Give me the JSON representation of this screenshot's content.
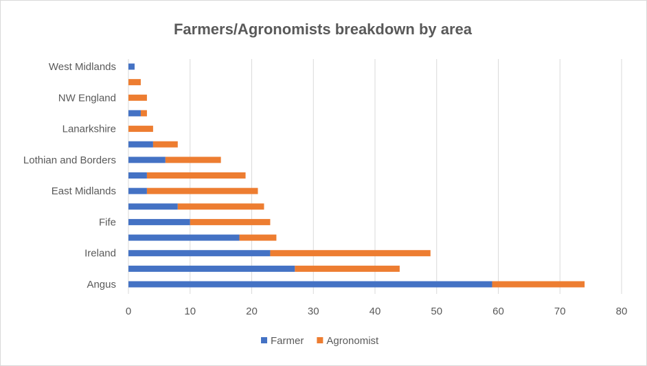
{
  "chart_data": {
    "type": "bar",
    "orientation": "horizontal",
    "stacked": true,
    "title": "Farmers/Agronomists breakdown by area",
    "xlabel": "",
    "ylabel": "",
    "categories": [
      "Angus",
      "",
      "Ireland",
      "",
      "Fife",
      "",
      "East Midlands",
      "",
      "Lothian and Borders",
      "",
      "Lanarkshire",
      "",
      "NW England",
      "",
      "West Midlands"
    ],
    "series": [
      {
        "name": "Farmer",
        "color": "#4472c4",
        "values": [
          59,
          27,
          23,
          18,
          10,
          8,
          3,
          3,
          6,
          4,
          0,
          2,
          0,
          0,
          1
        ]
      },
      {
        "name": "Agronomist",
        "color": "#ed7d31",
        "values": [
          15,
          17,
          26,
          6,
          13,
          14,
          18,
          16,
          9,
          4,
          4,
          1,
          3,
          2,
          0
        ]
      }
    ],
    "xlim": [
      0,
      80
    ],
    "xticks": [
      "0",
      "10",
      "20",
      "30",
      "40",
      "50",
      "60",
      "70",
      "80"
    ],
    "grid": true,
    "legend_position": "bottom"
  }
}
